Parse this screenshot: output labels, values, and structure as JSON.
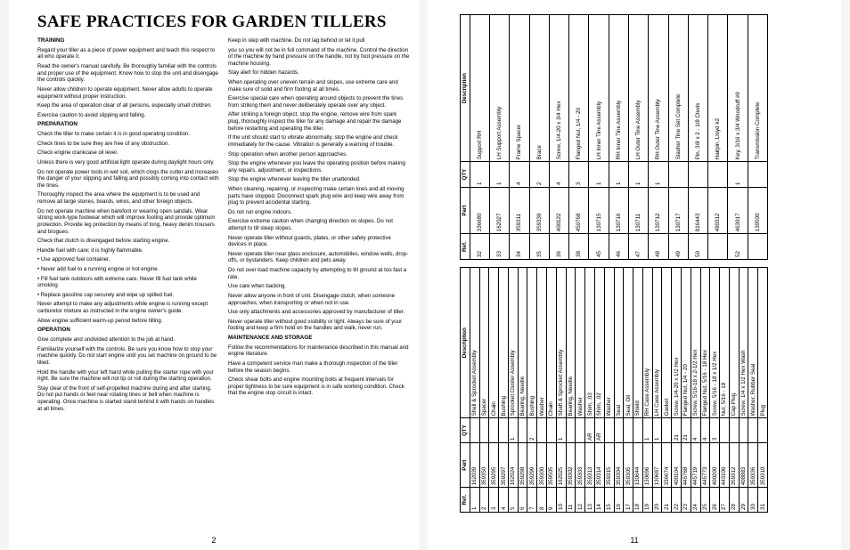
{
  "title": "SAFE PRACTICES FOR GARDEN TILLERS",
  "page_left_num": "2",
  "page_right_num": "11",
  "sections": {
    "training": {
      "head": "TRAINING",
      "paras": [
        "Regard your tiller as a piece of power equipment and teach this respect to all who operate it.",
        "Read the owner's manual carefully. Be thoroughly familiar with the controls and proper use of the equipment. Know how to stop the unit and disengage the controls quickly.",
        "Never allow children to operate equipment. Never allow adults to operate equipment without proper instruction.",
        "Keep the area of operation clear of all persons, especially small children.",
        "Exercise caution to avoid slipping and falling."
      ]
    },
    "preparation": {
      "head": "PREPARATION",
      "paras": [
        "Check the tiller to make certain it is in good operating condition.",
        "Check tines to be sure they are free of any obstruction.",
        "Check engine crankcase oil level.",
        "Unless there is very good artificial light operate during daylight hours only.",
        "Do not operate power tools in wet soil, which clogs the cutter and increases the danger of your slipping and falling and possibly coming into contact with the tines.",
        "Thoroughly inspect the area where the equipment is to be used and remove all large stones, boards, wires, and other foreign objects.",
        "Do not operate machine when barefoot or wearing open sandals. Wear strong work-type footwear which will improve footing and provide optimum protection. Provide leg protection by means of long, heavy denim trousers and brogues.",
        "Check that clutch is disengaged before starting engine.",
        "Handle fuel with care; it is highly flammable.",
        "• Use approved fuel container.",
        "• Never add fuel to a running engine or hot engine.",
        "• Fill fuel tank outdoors with extreme care. Never fill fuel tank while smoking.",
        "• Replace gasoline cap securely and wipe up spilled fuel.",
        "Never attempt to make any adjustments while engine is running except carburetor mixture as instructed in the engine owner's guide.",
        "Allow engine sufficient warm-up period before tilling."
      ]
    },
    "operation": {
      "head": "OPERATION",
      "paras": [
        "Give complete and undivided attention to the job at hand.",
        "Familiarize yourself with the controls. Be sure you know how to stop your machine quickly. Do not start engine until you set machine on ground to be tilled.",
        "Hold the handle with your left hand while pulling the starter rope with your right. Be sure the machine will not tip or roll during the starting operation.",
        "Stay clear of the front of self-propelled machine during and after starting. Do not put hands or feet near rotating tines or belt when machine is operating. Once machine is started stand behind it with hands on handles at all times.",
        "Keep in step with machine. Do not lag behind or let it pull",
        "you so you will not be in full command of the machine. Control the direction of the machine by hand pressure on the handle, not by foot pressure on the machine housing.",
        "Stay alert for hidden hazards.",
        "When operating over uneven terrain and slopes, use extreme care and make sure of solid and firm footing at all times.",
        "Exercise special care when operating around objects to prevent the tines from striking them and never deliberately operate over any object.",
        "After striking a foreign object, stop the engine, remove wire from spark plug, thoroughly inspect the tiller for any damage and repair the damage before restarting and operating the tiller.",
        "If the unit should start to vibrate abnormally, stop the engine and check immediately for the cause. Vibration is generally a warning of trouble.",
        "Stop operation when another person approaches.",
        "Stop the engine whenever you leave the operating position before making any repairs, adjustment, or inspections.",
        "Stop the engine whenever leaving the tiller unattended.",
        "When cleaning, repairing, or inspecting make certain tines and all moving parts have stopped. Disconnect spark plug wire and keep wire away from plug to prevent accidental starting.",
        "Do not run engine indoors.",
        "Exercise extreme caution when changing direction on slopes. Do not attempt to till steep slopes.",
        "Never operate tiller without guards, plates, or other safety protective devices in place.",
        "Never operate tiller near glass enclosure, automobiles, window wells, drop-offs, or bystanders. Keep children and pets away.",
        "Do not over load machine capacity by attempting to till ground at too fast a rate.",
        "Use care when backing.",
        "Never allow anyone in front of unit. Disengage clutch, when someone approaches, when transporting or when not in use.",
        "Use only attachments and accessories approved by manufacturer of tiller.",
        "Never operate tiller without good visibility or light. Always be sure of your footing and keep a firm hold on the handles and walk, never run."
      ]
    },
    "maintenance": {
      "head": "MAINTENANCE AND STORAGE",
      "paras": [
        "Follow the recommendations for maintenance described in this manual and engine literature.",
        "Have a competent service man make a thorough inspection of the tiller before the season begins.",
        "Check shear bolts and engine mounting bolts at frequent intervals for proper tightness to be sure equipment is in safe working condition. Check that the engine stop circuit is intact."
      ]
    }
  },
  "table_headers": {
    "ref": "Ref.",
    "part": "Part",
    "qty": "QTY",
    "desc": "Description"
  },
  "parts_left": [
    {
      "ref": "1",
      "part": "162039",
      "qty": "",
      "desc": "Shell & Sprocket Assembly"
    },
    {
      "ref": "2",
      "part": "359350",
      "qty": "",
      "desc": "Spacer"
    },
    {
      "ref": "3",
      "part": "359295",
      "qty": "",
      "desc": "Chain"
    },
    {
      "ref": "4",
      "part": "359297",
      "qty": "",
      "desc": "Bushing"
    },
    {
      "ref": "5",
      "part": "162024",
      "qty": "1",
      "desc": "Sprocket Cluster Assembly"
    },
    {
      "ref": "6",
      "part": "359298",
      "qty": "",
      "desc": "Bearing, Needle"
    },
    {
      "ref": "7",
      "part": "359299",
      "qty": "2",
      "desc": "Bushing"
    },
    {
      "ref": "8",
      "part": "359300",
      "qty": "",
      "desc": "Washer"
    },
    {
      "ref": "9",
      "part": "359505",
      "qty": "",
      "desc": "Chain"
    },
    {
      "ref": "10",
      "part": "162025",
      "qty": "1",
      "desc": "Shaft & Sprocket Assembly"
    },
    {
      "ref": "11",
      "part": "359302",
      "qty": "",
      "desc": "Bearing, Needle"
    },
    {
      "ref": "12",
      "part": "359303",
      "qty": "",
      "desc": "Washer"
    },
    {
      "ref": "13",
      "part": "359313",
      "qty": "AR",
      "desc": "Shim, .03"
    },
    {
      "ref": "14",
      "part": "359314",
      "qty": "AR",
      "desc": "Shim, .02"
    },
    {
      "ref": "15",
      "part": "359315",
      "qty": "",
      "desc": "Washer"
    },
    {
      "ref": "16",
      "part": "359304",
      "qty": "",
      "desc": "Seal"
    },
    {
      "ref": "17",
      "part": "359305",
      "qty": "",
      "desc": "Seal, Oil"
    },
    {
      "ref": "18",
      "part": "130644",
      "qty": "",
      "desc": "Shield"
    },
    {
      "ref": "19",
      "part": "130696",
      "qty": "1",
      "desc": "RH Case Assembly"
    },
    {
      "ref": "20",
      "part": "130697",
      "qty": "1",
      "desc": "LH Case Assembly"
    },
    {
      "ref": "21",
      "part": "336674",
      "qty": "",
      "desc": "Gasket"
    },
    {
      "ref": "22",
      "part": "400104",
      "qty": "21",
      "desc": "Screw, 1/4-20 x 1/2 Hex"
    },
    {
      "ref": "23",
      "part": "445768",
      "qty": "21",
      "desc": "Flanged Nut, 1/4 - 20"
    },
    {
      "ref": "24",
      "part": "445719",
      "qty": "4",
      "desc": "Screw, 5/16-18 x 2-1/2 Hex"
    },
    {
      "ref": "25",
      "part": "445773",
      "qty": "4",
      "desc": "Flanged Nut, 5/16 - 18 Hex"
    },
    {
      "ref": "26",
      "part": "400200",
      "qty": "3",
      "desc": "Screw, 5/16 - 18 x 1/2 Hex"
    },
    {
      "ref": "27",
      "part": "443106",
      "qty": "",
      "desc": "Nut, 5/16 - 18"
    },
    {
      "ref": "28",
      "part": "359312",
      "qty": "",
      "desc": "Cap Plug"
    },
    {
      "ref": "29",
      "part": "408883",
      "qty": "",
      "desc": "Screw, 1/4 x 1/2 Hex Wash"
    },
    {
      "ref": "30",
      "part": "359336",
      "qty": "",
      "desc": "Washer, Rubber Seal"
    },
    {
      "ref": "31",
      "part": "359310",
      "qty": "",
      "desc": "Plug"
    }
  ],
  "parts_right": [
    {
      "ref": "32",
      "part": "336680",
      "qty": "1",
      "desc": "Support RH"
    },
    {
      "ref": "33",
      "part": "162027",
      "qty": "1",
      "desc": "LH Support Assembly"
    },
    {
      "ref": "34",
      "part": "359311",
      "qty": "4",
      "desc": "Frame Spacer"
    },
    {
      "ref": "35",
      "part": "359339",
      "qty": "2",
      "desc": "Brace"
    },
    {
      "ref": "36",
      "part": "400122",
      "qty": "4",
      "desc": "Screw, 1/4-20 x 3/4 Hex"
    },
    {
      "ref": "38",
      "part": "450768",
      "qty": "3",
      "desc": "Flanged Nut, 1/4 - 20"
    },
    {
      "ref": "45",
      "part": "130715",
      "qty": "1",
      "desc": "LH Inner Tine Assembly"
    },
    {
      "ref": "46",
      "part": "130716",
      "qty": "1",
      "desc": "RH Inner Tine Assembly"
    },
    {
      "ref": "47",
      "part": "130711",
      "qty": "1",
      "desc": "LH Outer Tine Assembly"
    },
    {
      "ref": "48",
      "part": "130712",
      "qty": "1",
      "desc": "RH Outer Tine Assembly"
    },
    {
      "ref": "49",
      "part": "130717",
      "qty": "",
      "desc": "Slasher Tine Set Complete"
    },
    {
      "ref": "50",
      "part": "816443",
      "qty": "",
      "desc": "Pin, 3/8 x 2 - 1/8 Clevis"
    },
    {
      "ref": "",
      "part": "490312",
      "qty": "",
      "desc": "Hairpin, Lloyd #2"
    },
    {
      "ref": "52",
      "part": "463017",
      "qty": "1",
      "desc": "Key, 3/16 x 3/4 Woodruff #9"
    },
    {
      "ref": "",
      "part": "130500",
      "qty": "",
      "desc": "Transmission Complete"
    }
  ]
}
